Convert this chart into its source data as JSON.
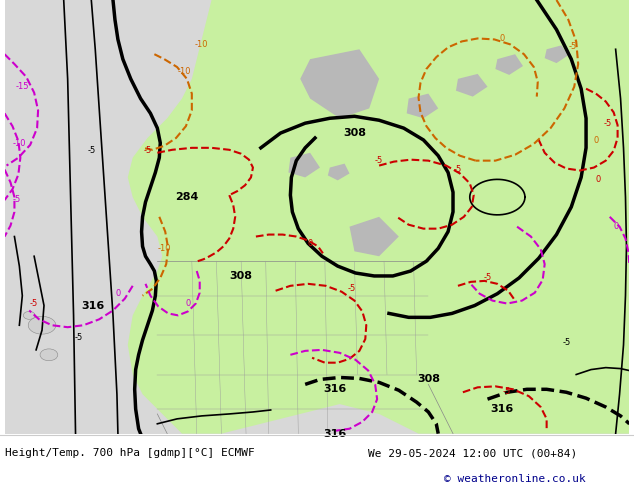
{
  "title_left": "Height/Temp. 700 hPa [gdmp][°C] ECMWF",
  "title_right": "We 29-05-2024 12:00 UTC (00+84)",
  "copyright": "© weatheronline.co.uk",
  "bg_color": "#ffffff",
  "ocean_color": "#d8d8d8",
  "land_color": "#d8d8d8",
  "green_land_color": "#c8f0a0",
  "fig_width": 6.34,
  "fig_height": 4.9,
  "dpi": 100,
  "footer_fontsize": 8.0,
  "copyright_color": "#00008b",
  "title_color": "#000000",
  "contour_black_color": "#000000",
  "contour_red_color": "#cc0000",
  "contour_orange_color": "#cc6600",
  "contour_pink_color": "#cc00cc",
  "label_fontsize": 7,
  "bold_linewidth": 2.5,
  "thin_linewidth": 1.2,
  "dash_pattern": [
    5,
    3
  ]
}
